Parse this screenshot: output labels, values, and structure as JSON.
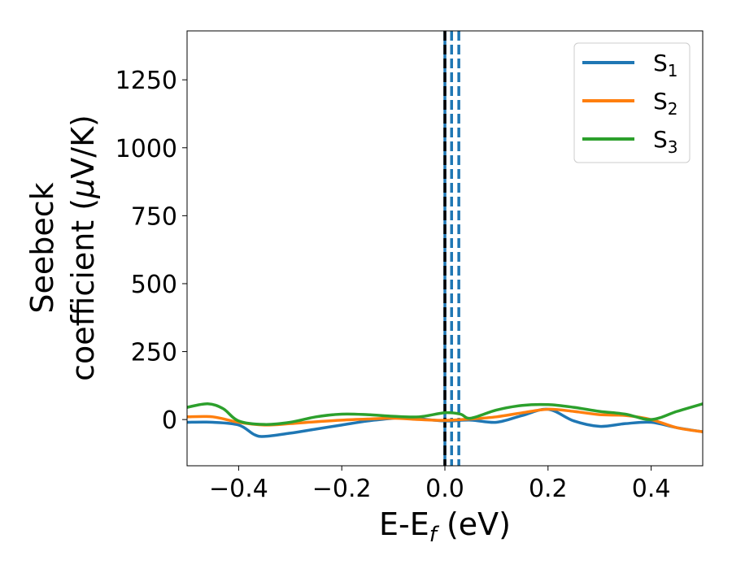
{
  "chart_data": {
    "type": "line",
    "xlabel": {
      "main": "E-E",
      "sub": "f",
      "rest": " (eV)"
    },
    "ylabel": {
      "line1": "Seebeck",
      "line2_prefix": "coefficient  (",
      "line2_mu": "μ",
      "line2_suffix": "V/K)"
    },
    "xlim": [
      -0.5,
      0.5
    ],
    "ylim": [
      -170,
      1430
    ],
    "xticks": [
      -0.4,
      -0.2,
      0.0,
      0.2,
      0.4
    ],
    "xtick_labels": [
      "−0.4",
      "−0.2",
      "0.0",
      "0.2",
      "0.4"
    ],
    "yticks": [
      0,
      250,
      500,
      750,
      1000,
      1250
    ],
    "ytick_labels": [
      "0",
      "250",
      "500",
      "750",
      "1000",
      "1250"
    ],
    "grid": false,
    "legend_position": "top-right",
    "vlines": [
      {
        "x": 0.0,
        "style": "solid",
        "color": "#1f77b4"
      },
      {
        "x": 0.0,
        "style": "dashed",
        "color": "#000000"
      },
      {
        "x": 0.013,
        "style": "dashed",
        "color": "#1f77b4"
      },
      {
        "x": 0.027,
        "style": "dashed",
        "color": "#1f77b4"
      }
    ],
    "series": [
      {
        "name": "S",
        "sub": "1",
        "color": "#1f77b4",
        "x": [
          -0.5,
          -0.45,
          -0.4,
          -0.37,
          -0.35,
          -0.3,
          -0.25,
          -0.2,
          -0.15,
          -0.1,
          -0.08,
          -0.05,
          0.0,
          0.05,
          0.1,
          0.15,
          0.2,
          0.25,
          0.3,
          0.35,
          0.4,
          0.45,
          0.5
        ],
        "y": [
          -10,
          -10,
          -20,
          -55,
          -62,
          -50,
          -35,
          -20,
          -5,
          5,
          8,
          3,
          -5,
          -2,
          -10,
          15,
          38,
          -5,
          -25,
          -15,
          -10,
          -30,
          -45
        ]
      },
      {
        "name": "S",
        "sub": "2",
        "color": "#ff7f0e",
        "x": [
          -0.5,
          -0.45,
          -0.4,
          -0.35,
          -0.3,
          -0.25,
          -0.2,
          -0.15,
          -0.1,
          -0.05,
          0.0,
          0.05,
          0.1,
          0.15,
          0.2,
          0.25,
          0.3,
          0.35,
          0.4,
          0.45,
          0.5
        ],
        "y": [
          10,
          10,
          -10,
          -20,
          -15,
          -8,
          -2,
          2,
          5,
          0,
          -3,
          2,
          10,
          25,
          38,
          30,
          18,
          15,
          0,
          -30,
          -45
        ]
      },
      {
        "name": "S",
        "sub": "3",
        "color": "#2ca02c",
        "x": [
          -0.5,
          -0.46,
          -0.43,
          -0.4,
          -0.35,
          -0.3,
          -0.25,
          -0.2,
          -0.15,
          -0.1,
          -0.05,
          0.0,
          0.03,
          0.05,
          0.1,
          0.15,
          0.2,
          0.25,
          0.3,
          0.35,
          0.4,
          0.45,
          0.5
        ],
        "y": [
          45,
          58,
          40,
          -5,
          -18,
          -10,
          10,
          20,
          18,
          12,
          10,
          25,
          20,
          5,
          35,
          52,
          55,
          45,
          30,
          20,
          0,
          30,
          58
        ]
      }
    ]
  }
}
